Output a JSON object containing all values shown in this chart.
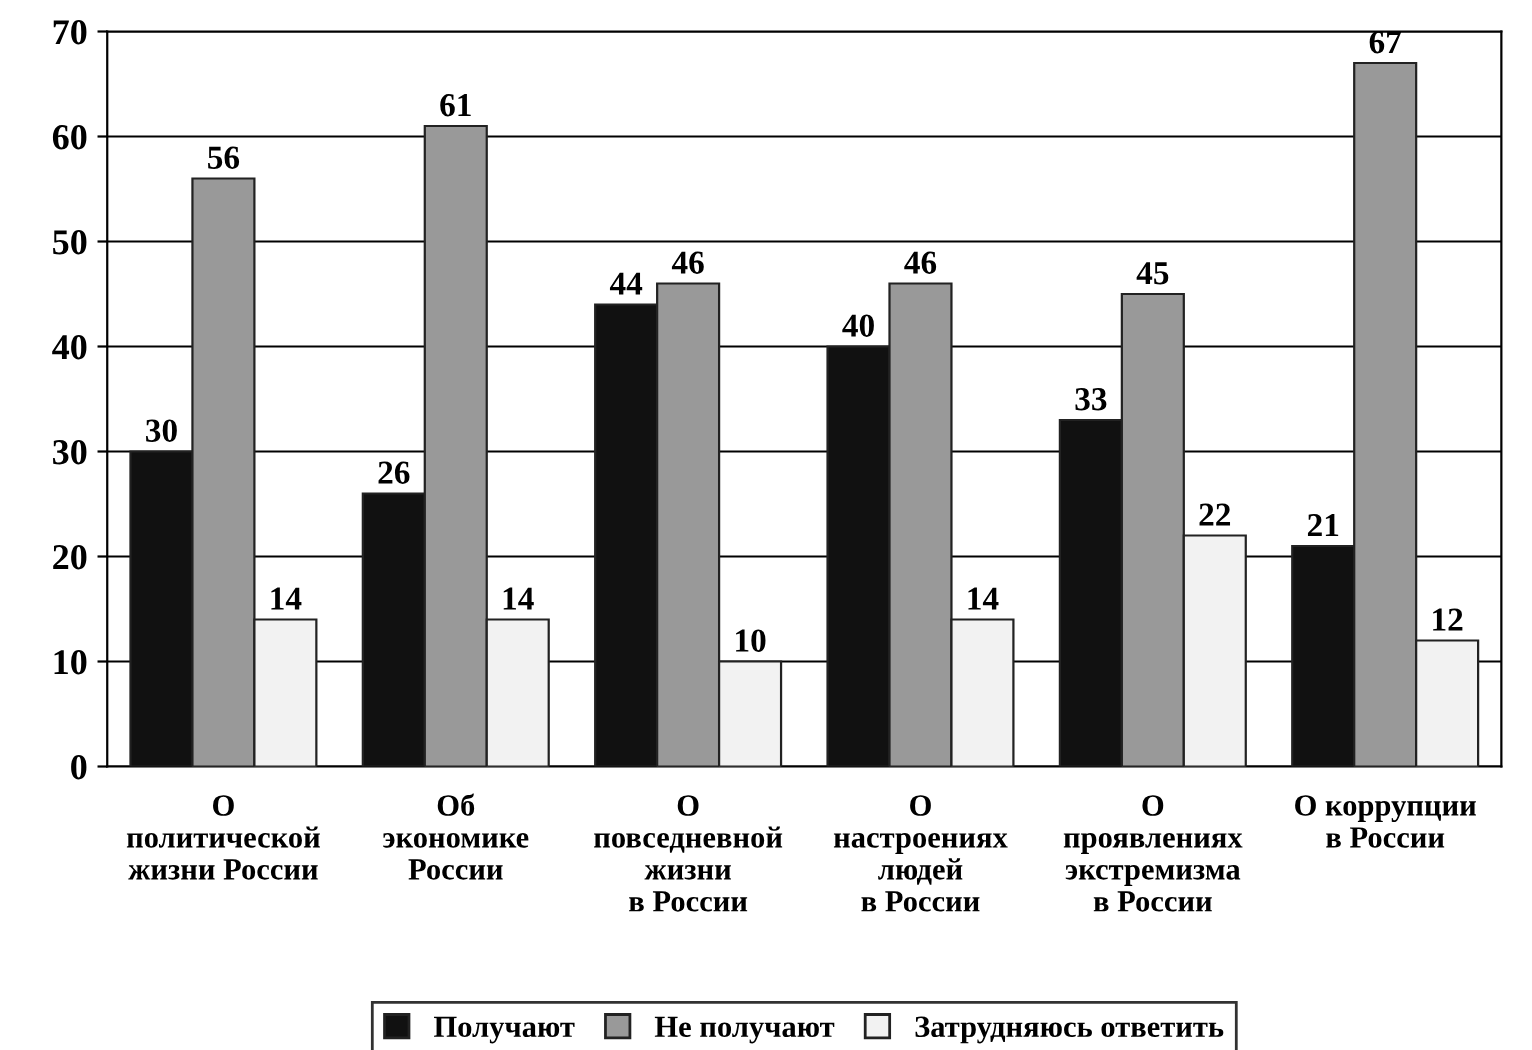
{
  "chart_data": {
    "type": "bar",
    "categories": [
      "О\nполитической\nжизни России",
      "Об\nэкономике\nРоссии",
      "О\nповседневной\nжизни\nв России",
      "О\nнастроениях\nлюдей\nв России",
      "О\nпроявлениях\nэкстремизма\nв России",
      "О коррупции\nв России"
    ],
    "series": [
      {
        "name": "Получают",
        "color": "#111111",
        "values": [
          30,
          26,
          44,
          40,
          33,
          21
        ]
      },
      {
        "name": "Не получают",
        "color": "#999999",
        "values": [
          56,
          61,
          46,
          46,
          45,
          67
        ]
      },
      {
        "name": "Затрудняюсь ответить",
        "color": "#f2f2f2",
        "values": [
          14,
          14,
          10,
          14,
          22,
          12
        ]
      }
    ],
    "ylim": [
      0,
      70
    ],
    "yticks": [
      0,
      10,
      20,
      30,
      40,
      50,
      60,
      70
    ],
    "grid": "y",
    "legend": "bottom",
    "data_labels": true
  }
}
